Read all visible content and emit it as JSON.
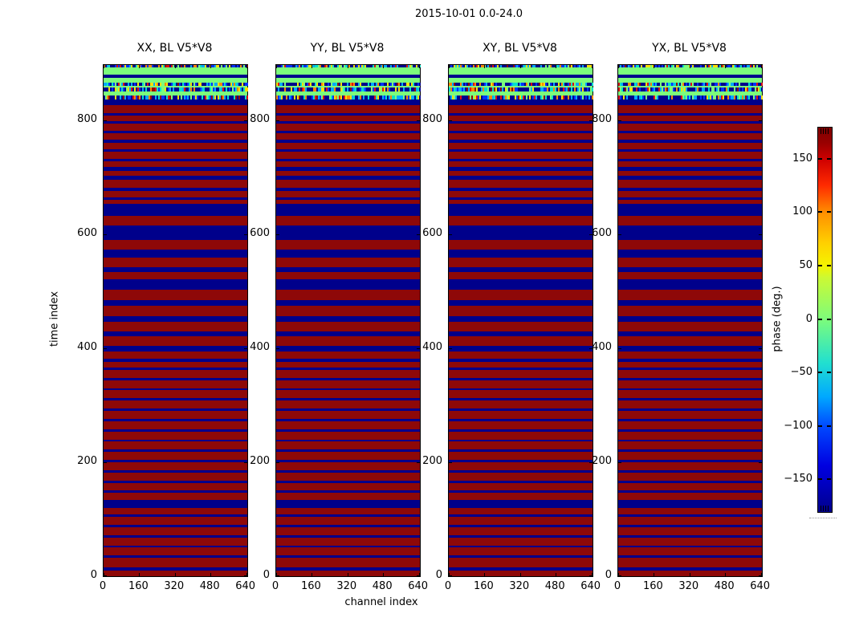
{
  "figure": {
    "title": "2015-10-01 0.0-24.0",
    "background": "#ffffff"
  },
  "chart_data": {
    "type": "heatmap",
    "title": "2015-10-01 0.0-24.0",
    "xlabel": "channel index",
    "ylabel": "time index",
    "panels": [
      {
        "title": "XX, BL V5*V8"
      },
      {
        "title": "YY, BL V5*V8"
      },
      {
        "title": "XY, BL V5*V8"
      },
      {
        "title": "YX, BL V5*V8"
      }
    ],
    "panels_share_pattern": true,
    "x_axis": {
      "ticks": [
        0,
        160,
        320,
        480,
        640
      ],
      "range": [
        0,
        645
      ]
    },
    "y_axis": {
      "ticks": [
        0,
        200,
        400,
        600,
        800
      ],
      "range": [
        0,
        897
      ]
    },
    "colorbar": {
      "label": "phase (deg.)",
      "tick_values": [
        150,
        100,
        50,
        0,
        -50,
        -100,
        -150
      ],
      "tick_labels": [
        "150",
        "100",
        "50",
        "0",
        "−50",
        "−100",
        "−150"
      ],
      "range": [
        -180,
        180
      ],
      "colormap": "jet"
    },
    "colors": {
      "phase_plus180_red": "#8e0808",
      "phase_minus180_navy": "#00008b",
      "phase_zero_green": "#7cfc7c"
    },
    "pattern": {
      "red_base_time_range": [
        0,
        837
      ],
      "green_base_time_range": [
        837,
        897
      ],
      "navy_stripes_time_ranges": [
        [
          10,
          15
        ],
        [
          32,
          36
        ],
        [
          50,
          54
        ],
        [
          68,
          72
        ],
        [
          86,
          90
        ],
        [
          104,
          108
        ],
        [
          120,
          134
        ],
        [
          146,
          150
        ],
        [
          164,
          168
        ],
        [
          182,
          186
        ],
        [
          200,
          204
        ],
        [
          218,
          222
        ],
        [
          236,
          240
        ],
        [
          254,
          258
        ],
        [
          272,
          276
        ],
        [
          290,
          294
        ],
        [
          308,
          312
        ],
        [
          326,
          330
        ],
        [
          344,
          348
        ],
        [
          362,
          366
        ],
        [
          376,
          381
        ],
        [
          394,
          404
        ],
        [
          421,
          430
        ],
        [
          446,
          456
        ],
        [
          475,
          484
        ],
        [
          503,
          521
        ],
        [
          534,
          542
        ],
        [
          559,
          573
        ],
        [
          590,
          615
        ],
        [
          632,
          653
        ],
        [
          660,
          665
        ],
        [
          676,
          682
        ],
        [
          696,
          703
        ],
        [
          711,
          718
        ],
        [
          728,
          732
        ],
        [
          745,
          749
        ],
        [
          760,
          766
        ],
        [
          777,
          782
        ],
        [
          794,
          799
        ],
        [
          808,
          813
        ],
        [
          827,
          837
        ],
        [
          874,
          880
        ]
      ],
      "noise_rows_time_ranges": [
        [
          837,
          843
        ],
        [
          851,
          857
        ],
        [
          860,
          866
        ],
        [
          893,
          897
        ]
      ],
      "noise_palette": [
        {
          "c": "#00008b",
          "w": 0.4
        },
        {
          "c": "#0033ff",
          "w": 0.12
        },
        {
          "c": "#00aaff",
          "w": 0.1
        },
        {
          "c": "#00e0cc",
          "w": 0.08
        },
        {
          "c": "#7cfc7c",
          "w": 0.06
        },
        {
          "c": "#ffe000",
          "w": 0.09
        },
        {
          "c": "#ff8800",
          "w": 0.07
        },
        {
          "c": "#e01010",
          "w": 0.05
        },
        {
          "c": "#8e0a0a",
          "w": 0.03
        }
      ]
    }
  }
}
